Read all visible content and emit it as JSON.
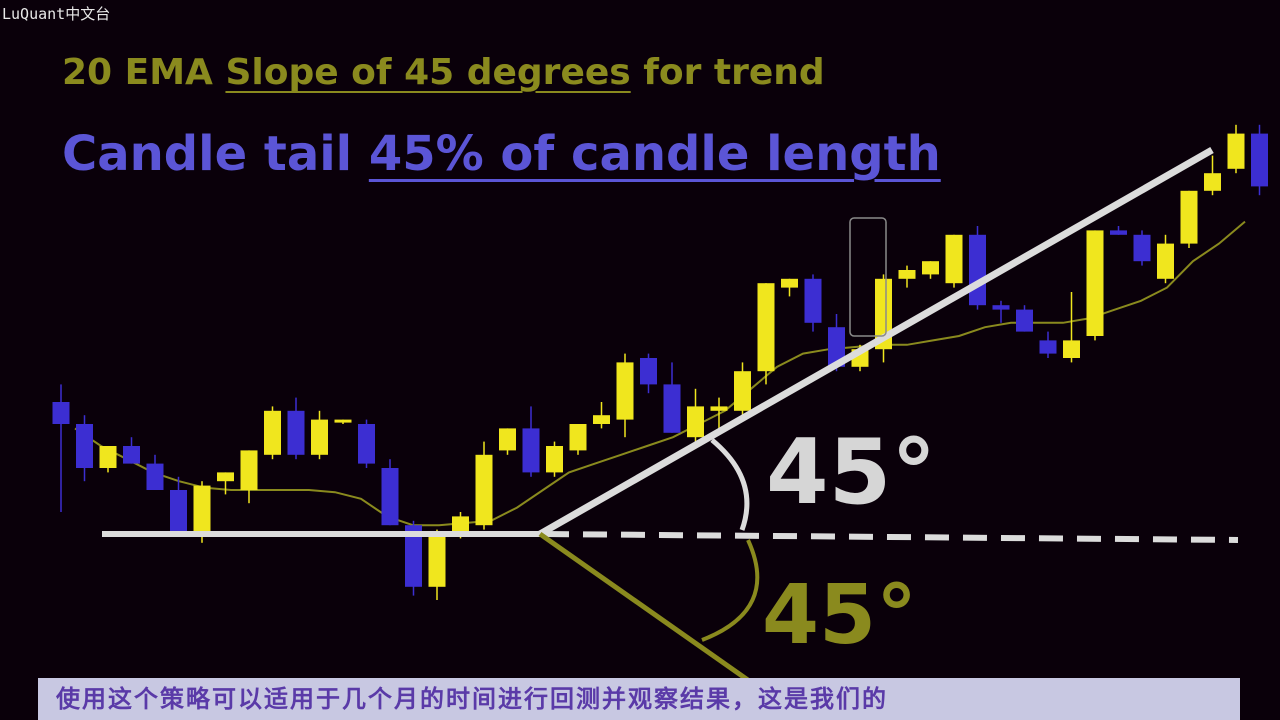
{
  "watermark": "LuQuant中文台",
  "title_line1": {
    "part1": "20 EMA ",
    "underlined": "Slope of 45 degrees",
    "part2": " for trend"
  },
  "title_line2": {
    "part1": "Candle tail ",
    "underlined": "45% of candle length"
  },
  "angle_upper": "45°",
  "angle_lower": "45°",
  "subtitle": "使用这个策略可以适用于几个月的时间进行回测并观察结果，这是我们的",
  "colors": {
    "background": "#0a000a",
    "bull": "#f0e61e",
    "bear": "#3c2ed2",
    "ema": "#8a8a1e",
    "trendline": "#dcdcdc",
    "title1": "#8a8a1e",
    "title2": "#5b55d6"
  },
  "chart_data": {
    "type": "candlestick",
    "y_axis": "price (unlabeled)",
    "candles": [
      {
        "o": 30,
        "h": 34,
        "l": 5,
        "c": 25
      },
      {
        "o": 25,
        "h": 27,
        "l": 12,
        "c": 15
      },
      {
        "o": 15,
        "h": 20,
        "l": 14,
        "c": 20
      },
      {
        "o": 20,
        "h": 22,
        "l": 16,
        "c": 16
      },
      {
        "o": 16,
        "h": 18,
        "l": 10,
        "c": 10
      },
      {
        "o": 10,
        "h": 13,
        "l": 0,
        "c": 0
      },
      {
        "o": 0,
        "h": 12,
        "l": -2,
        "c": 11
      },
      {
        "o": 12,
        "h": 14,
        "l": 9,
        "c": 14
      },
      {
        "o": 10,
        "h": 19,
        "l": 7,
        "c": 19
      },
      {
        "o": 18,
        "h": 29,
        "l": 17,
        "c": 28
      },
      {
        "o": 28,
        "h": 31,
        "l": 17,
        "c": 18
      },
      {
        "o": 18,
        "h": 28,
        "l": 17,
        "c": 26
      },
      {
        "o": 26,
        "h": 26,
        "l": 25,
        "c": 26
      },
      {
        "o": 25,
        "h": 26,
        "l": 15,
        "c": 16
      },
      {
        "o": 15,
        "h": 17,
        "l": 2,
        "c": 2
      },
      {
        "o": 2,
        "h": 3,
        "l": -14,
        "c": -12
      },
      {
        "o": -12,
        "h": 1,
        "l": -15,
        "c": 0
      },
      {
        "o": 0,
        "h": 5,
        "l": -1,
        "c": 4
      },
      {
        "o": 2,
        "h": 21,
        "l": 1,
        "c": 18
      },
      {
        "o": 19,
        "h": 24,
        "l": 18,
        "c": 24
      },
      {
        "o": 24,
        "h": 29,
        "l": 13,
        "c": 14
      },
      {
        "o": 14,
        "h": 21,
        "l": 13,
        "c": 20
      },
      {
        "o": 19,
        "h": 25,
        "l": 18,
        "c": 25
      },
      {
        "o": 25,
        "h": 30,
        "l": 24,
        "c": 27
      },
      {
        "o": 26,
        "h": 41,
        "l": 22,
        "c": 39
      },
      {
        "o": 40,
        "h": 41,
        "l": 32,
        "c": 34
      },
      {
        "o": 34,
        "h": 39,
        "l": 23,
        "c": 23
      },
      {
        "o": 22,
        "h": 33,
        "l": 21,
        "c": 29
      },
      {
        "o": 28,
        "h": 31,
        "l": 23,
        "c": 29
      },
      {
        "o": 28,
        "h": 39,
        "l": 27,
        "c": 37
      },
      {
        "o": 37,
        "h": 57,
        "l": 34,
        "c": 57
      },
      {
        "o": 56,
        "h": 58,
        "l": 54,
        "c": 58
      },
      {
        "o": 58,
        "h": 59,
        "l": 46,
        "c": 48
      },
      {
        "o": 47,
        "h": 50,
        "l": 37,
        "c": 38
      },
      {
        "o": 38,
        "h": 43,
        "l": 37,
        "c": 42
      },
      {
        "o": 42,
        "h": 59,
        "l": 39,
        "c": 58
      },
      {
        "o": 58,
        "h": 61,
        "l": 56,
        "c": 60
      },
      {
        "o": 59,
        "h": 62,
        "l": 58,
        "c": 62
      },
      {
        "o": 57,
        "h": 68,
        "l": 56,
        "c": 68
      },
      {
        "o": 68,
        "h": 70,
        "l": 51,
        "c": 52
      },
      {
        "o": 52,
        "h": 53,
        "l": 48,
        "c": 51
      },
      {
        "o": 51,
        "h": 52,
        "l": 46,
        "c": 46
      },
      {
        "o": 44,
        "h": 46,
        "l": 40,
        "c": 41
      },
      {
        "o": 40,
        "h": 55,
        "l": 39,
        "c": 44
      },
      {
        "o": 45,
        "h": 69,
        "l": 44,
        "c": 69
      },
      {
        "o": 69,
        "h": 70,
        "l": 68,
        "c": 68
      },
      {
        "o": 68,
        "h": 69,
        "l": 61,
        "c": 62
      },
      {
        "o": 58,
        "h": 68,
        "l": 57,
        "c": 66
      },
      {
        "o": 66,
        "h": 78,
        "l": 65,
        "c": 78
      },
      {
        "o": 78,
        "h": 86,
        "l": 77,
        "c": 82
      },
      {
        "o": 83,
        "h": 93,
        "l": 82,
        "c": 91
      },
      {
        "o": 91,
        "h": 93,
        "l": 77,
        "c": 79
      }
    ],
    "ema_20": [
      24,
      20,
      17,
      14,
      12,
      10.5,
      10,
      10,
      10,
      10,
      9.5,
      8,
      4,
      2,
      2,
      2.5,
      3,
      6,
      10,
      14,
      16,
      18,
      20,
      22,
      25,
      28,
      33,
      38,
      41,
      42,
      42.5,
      43,
      43,
      44,
      45,
      47,
      48,
      48,
      48,
      49,
      51,
      53,
      56,
      62,
      66,
      71
    ],
    "annotations": [
      "horizontal support line with dashed extension",
      "rising trendline at 45°",
      "45° angle arc above the horizontal",
      "45° angle arc below the horizontal",
      "highlighted candle with tail"
    ]
  }
}
